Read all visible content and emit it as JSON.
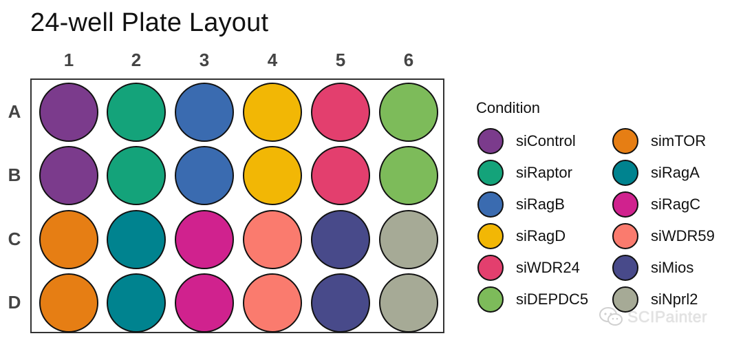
{
  "title": "24-well Plate Layout",
  "columns": [
    "1",
    "2",
    "3",
    "4",
    "5",
    "6"
  ],
  "rows": [
    "A",
    "B",
    "C",
    "D"
  ],
  "legend": {
    "title": "Condition",
    "items": [
      {
        "label": "siControl",
        "color": "#7B3B8C"
      },
      {
        "label": "siRaptor",
        "color": "#14A37A"
      },
      {
        "label": "siRagB",
        "color": "#3A6BB0"
      },
      {
        "label": "siRagD",
        "color": "#F2B705"
      },
      {
        "label": "siWDR24",
        "color": "#E33F6E"
      },
      {
        "label": "siDEPDC5",
        "color": "#7DBB5A"
      },
      {
        "label": "simTOR",
        "color": "#E67E14"
      },
      {
        "label": "siRagA",
        "color": "#00838F"
      },
      {
        "label": "siRagC",
        "color": "#D0228E"
      },
      {
        "label": "siWDR59",
        "color": "#FA7B6E"
      },
      {
        "label": "siMios",
        "color": "#484A8A"
      },
      {
        "label": "siNprl2",
        "color": "#A6AA96"
      }
    ]
  },
  "plate": [
    [
      "siControl",
      "siRaptor",
      "siRagB",
      "siRagD",
      "siWDR24",
      "siDEPDC5"
    ],
    [
      "siControl",
      "siRaptor",
      "siRagB",
      "siRagD",
      "siWDR24",
      "siDEPDC5"
    ],
    [
      "simTOR",
      "siRagA",
      "siRagC",
      "siWDR59",
      "siMios",
      "siNprl2"
    ],
    [
      "simTOR",
      "siRagA",
      "siRagC",
      "siWDR59",
      "siMios",
      "siNprl2"
    ]
  ],
  "watermark": "SCIPainter"
}
